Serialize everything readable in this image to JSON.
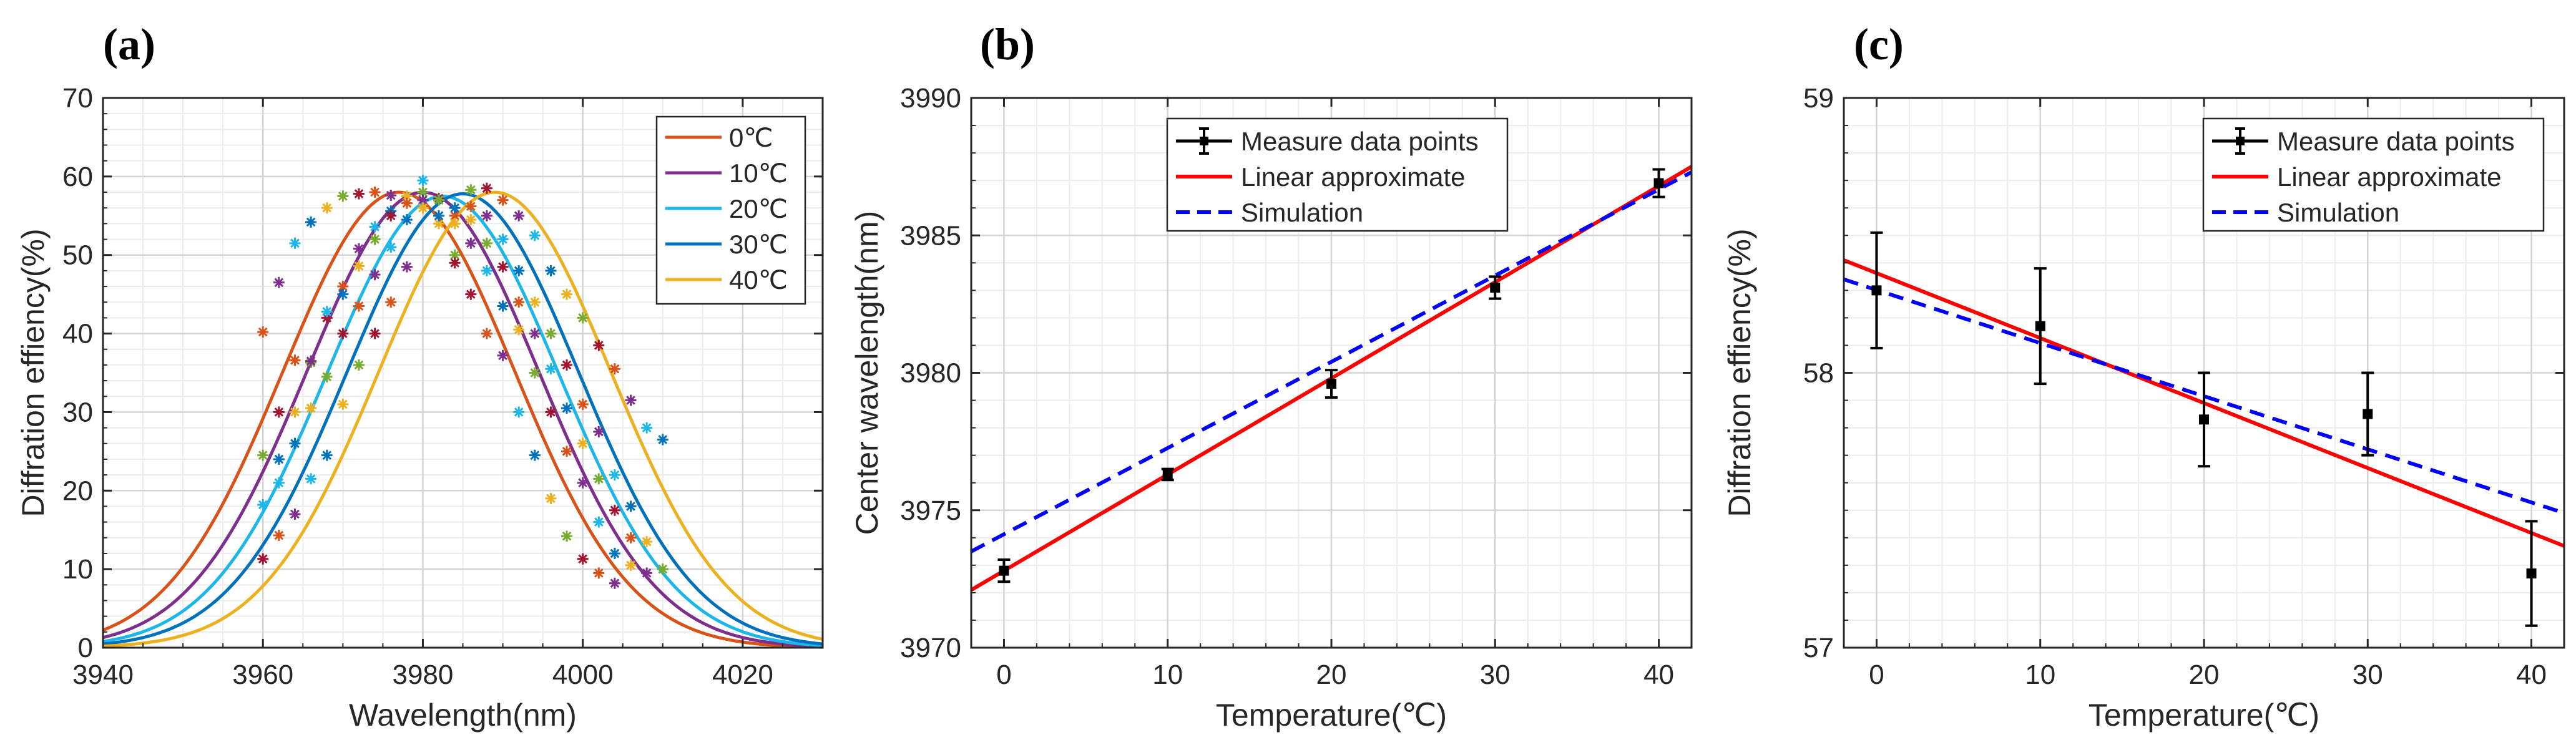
{
  "chart_data": [
    {
      "type": "line",
      "panel_label": "(a)",
      "title": "",
      "xlabel": "Wavelength(nm)",
      "ylabel": "Diffration effiency(%)",
      "xlim": [
        3940,
        4030
      ],
      "ylim": [
        0,
        70
      ],
      "xticks": [
        3940,
        3960,
        3980,
        4000,
        4020
      ],
      "yticks": [
        0,
        10,
        20,
        30,
        40,
        50,
        60,
        70
      ],
      "xtick_labels": [
        "3940",
        "3960",
        "3980",
        "4000",
        "4020"
      ],
      "ytick_labels": [
        "0",
        "10",
        "20",
        "30",
        "40",
        "50",
        "60",
        "70"
      ],
      "grid": true,
      "legend_position": "top-right",
      "series": [
        {
          "name": "0℃",
          "color": "#D95319",
          "peak": 58.0,
          "center": 3977.0,
          "sigma": 14.5,
          "points_x": [
            3960,
            3962,
            3964,
            3966,
            3968,
            3970,
            3972,
            3974,
            3976,
            3978,
            3980,
            3982,
            3984,
            3986,
            3988,
            3990,
            3992,
            3994,
            3996,
            3998,
            4000,
            4002,
            4004
          ],
          "points_y": [
            40.2,
            46.5,
            51.5,
            54.2,
            56.0,
            57.5,
            57.8,
            58.0,
            57.6,
            57.5,
            57.0,
            54.0,
            50.0,
            45.0,
            40.0,
            37.2,
            30.0,
            24.5,
            19.0,
            14.2,
            11.3,
            9.5,
            8.2
          ]
        },
        {
          "name": "10℃",
          "color": "#7E2F8E",
          "peak": 58.0,
          "center": 3980.0,
          "sigma": 14.5,
          "points_x": [
            3960,
            3962,
            3964,
            3966,
            3968,
            3970,
            3972,
            3974,
            3976,
            3978,
            3980,
            3982,
            3984,
            3986,
            3988,
            3990,
            3992,
            3994,
            3996,
            3998,
            4000,
            4002,
            4004,
            4006
          ],
          "points_y": [
            18.2,
            24.0,
            30.0,
            36.3,
            42.0,
            46.0,
            50.8,
            53.6,
            55.6,
            57.5,
            58.0,
            57.2,
            55.0,
            51.5,
            48.0,
            43.5,
            40.5,
            35.0,
            30.0,
            25.0,
            21.0,
            16.0,
            12.0,
            10.5
          ]
        },
        {
          "name": "20℃",
          "color": "#1CB7E8",
          "peak": 57.5,
          "center": 3982.5,
          "sigma": 14.5,
          "points_x": [
            3960,
            3962,
            3964,
            3966,
            3968,
            3970,
            3972,
            3974,
            3976,
            3978,
            3980,
            3982,
            3984,
            3986,
            3988,
            3990,
            3992,
            3994,
            3996,
            3998,
            4000,
            4002,
            4004,
            4006,
            4008
          ],
          "points_y": [
            24.5,
            30.0,
            36.6,
            36.5,
            42.8,
            45.0,
            48.6,
            52.0,
            55.0,
            56.6,
            57.0,
            57.0,
            56.0,
            54.5,
            51.5,
            48.5,
            44.0,
            40.0,
            35.5,
            30.5,
            26.0,
            21.5,
            17.5,
            14.0,
            9.5
          ]
        },
        {
          "name": "30℃",
          "color": "#0072BD",
          "peak": 57.8,
          "center": 3985.0,
          "sigma": 14.5,
          "points_x": [
            3962,
            3964,
            3966,
            3968,
            3970,
            3972,
            3974,
            3976,
            3978,
            3980,
            3982,
            3984,
            3986,
            3988,
            3990,
            3992,
            3994,
            3996,
            3998,
            4000,
            4002,
            4004,
            4006,
            4008,
            4010
          ],
          "points_y": [
            21.0,
            26.0,
            30.5,
            34.5,
            40.0,
            43.5,
            47.5,
            51.0,
            54.5,
            56.0,
            57.0,
            49.0,
            56.2,
            55.0,
            52.0,
            48.0,
            44.0,
            40.0,
            36.0,
            31.0,
            27.5,
            22.0,
            18.0,
            13.5,
            10.0
          ]
        },
        {
          "name": "40℃",
          "color": "#EDB120",
          "peak": 58.0,
          "center": 3989.0,
          "sigma": 14.5,
          "points_x": [
            3960,
            3962,
            3964,
            3966,
            3968,
            3970,
            3972,
            3974,
            3976,
            3978,
            3980,
            3982,
            3984,
            3986,
            3988,
            3990,
            3992,
            3994,
            3996,
            3998,
            4000,
            4002,
            4004,
            4006,
            4008,
            4010
          ],
          "points_y": [
            11.3,
            14.3,
            17.0,
            21.5,
            24.5,
            31.0,
            36.0,
            40.0,
            44.0,
            48.5,
            59.5,
            55.0,
            54.0,
            58.3,
            58.5,
            57.0,
            55.0,
            52.5,
            48.0,
            45.0,
            42.0,
            38.5,
            35.5,
            31.5,
            28.0,
            26.5
          ]
        }
      ]
    },
    {
      "type": "line",
      "panel_label": "(b)",
      "title": "",
      "xlabel": "Temperature(℃)",
      "ylabel": "Center wavelength(nm)",
      "xlim": [
        -2,
        42
      ],
      "ylim": [
        3970,
        3990
      ],
      "xticks": [
        0,
        10,
        20,
        30,
        40
      ],
      "yticks": [
        3970,
        3975,
        3980,
        3985,
        3990
      ],
      "xtick_labels": [
        "0",
        "10",
        "20",
        "30",
        "40"
      ],
      "ytick_labels": [
        "3970",
        "3975",
        "3980",
        "3985",
        "3990"
      ],
      "grid": true,
      "legend_position": "top",
      "legend": [
        "Measure data points",
        "Linear approximate",
        "Simulation"
      ],
      "measured": {
        "x": [
          0,
          10,
          20,
          30,
          40
        ],
        "y": [
          3972.8,
          3976.3,
          3979.6,
          3983.1,
          3986.9
        ],
        "err": [
          0.4,
          0.2,
          0.5,
          0.4,
          0.5
        ]
      },
      "linear": {
        "x": [
          -2,
          42
        ],
        "y": [
          3972.1,
          3987.5
        ]
      },
      "simulation": {
        "x": [
          -2,
          42
        ],
        "y": [
          3973.5,
          3987.3
        ]
      }
    },
    {
      "type": "line",
      "panel_label": "(c)",
      "title": "",
      "xlabel": "Temperature(℃)",
      "ylabel": "Diffration effiency(%)",
      "xlim": [
        -2,
        42
      ],
      "ylim": [
        57,
        59
      ],
      "xticks": [
        0,
        10,
        20,
        30,
        40
      ],
      "yticks": [
        57,
        58,
        59
      ],
      "xtick_labels": [
        "0",
        "10",
        "20",
        "30",
        "40"
      ],
      "ytick_labels": [
        "57",
        "58",
        "59"
      ],
      "grid": true,
      "legend_position": "top-right",
      "legend": [
        "Measure data points",
        "Linear approximate",
        "Simulation"
      ],
      "measured": {
        "x": [
          0,
          10,
          20,
          30,
          40
        ],
        "y": [
          58.3,
          58.17,
          57.83,
          57.85,
          57.27
        ],
        "err": [
          0.21,
          0.21,
          0.17,
          0.15,
          0.19
        ]
      },
      "linear": {
        "x": [
          -2,
          42
        ],
        "y": [
          58.41,
          57.37
        ]
      },
      "simulation": {
        "x": [
          -2,
          42
        ],
        "y": [
          58.34,
          57.49
        ]
      }
    }
  ]
}
